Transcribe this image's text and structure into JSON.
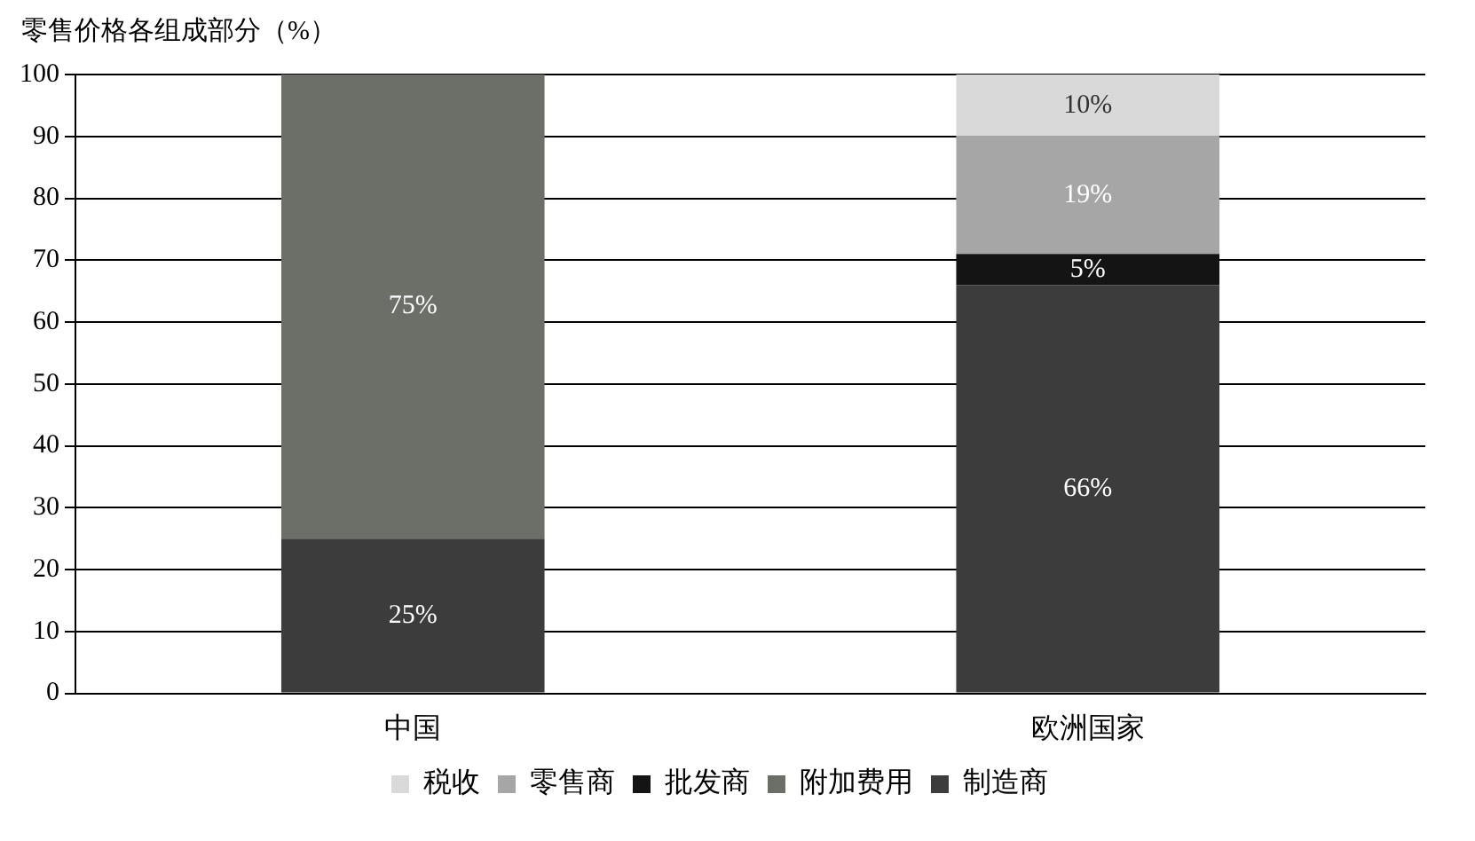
{
  "chart_data": {
    "type": "bar",
    "ylabel": "零售价格各组成部分（%）",
    "categories": [
      "中国",
      "欧洲国家"
    ],
    "stacked": true,
    "ylim": [
      0,
      100
    ],
    "yticks": [
      0,
      10,
      20,
      30,
      40,
      50,
      60,
      70,
      80,
      90,
      100
    ],
    "grid": "y",
    "legend": "bottom",
    "series": [
      {
        "name": "制造商",
        "color": "#3c3c3c",
        "values": [
          25,
          66
        ],
        "value_labels": [
          "25%",
          "66%"
        ]
      },
      {
        "name": "附加费用",
        "color": "#6b6f68",
        "values": [
          75,
          null
        ],
        "value_labels": [
          "75%",
          null
        ]
      },
      {
        "name": "批发商",
        "color": "#141414",
        "values": [
          null,
          5
        ],
        "value_labels": [
          null,
          "5%"
        ]
      },
      {
        "name": "零售商",
        "color": "#a6a6a6",
        "values": [
          null,
          19
        ],
        "value_labels": [
          null,
          "19%"
        ]
      },
      {
        "name": "税收",
        "color": "#d9d9d9",
        "values": [
          null,
          10
        ],
        "value_labels": [
          null,
          "10%"
        ]
      }
    ]
  }
}
